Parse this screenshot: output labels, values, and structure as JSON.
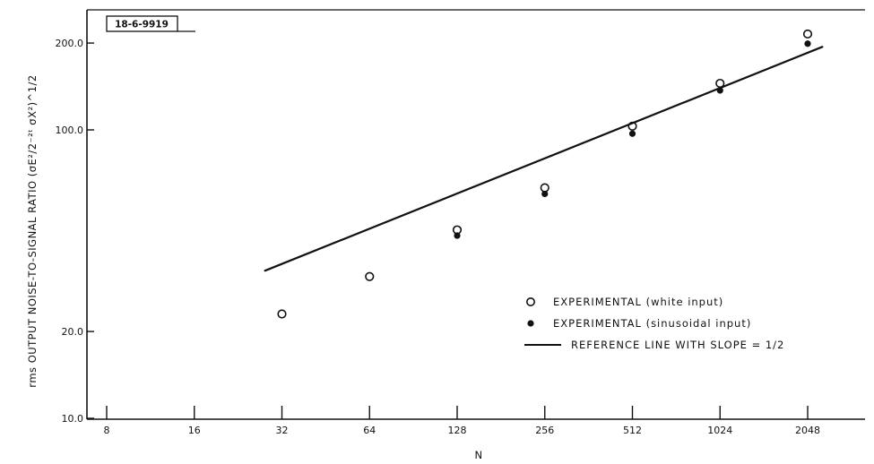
{
  "figure_id": "18-6-9919",
  "chart_data": {
    "type": "scatter",
    "title": "",
    "xlabel": "N",
    "ylabel": "rms OUTPUT NOISE-TO-SIGNAL RATIO (σE²/2⁻²ᵗ σX²)^1/2",
    "x_scale": "log2",
    "y_scale": "log",
    "xlim": [
      8,
      4096
    ],
    "ylim": [
      10,
      300
    ],
    "x_ticks": [
      8,
      16,
      32,
      64,
      128,
      256,
      512,
      1024,
      2048
    ],
    "x_tick_labels": [
      "8",
      "16",
      "32",
      "64",
      "128",
      "256",
      "512",
      "1024",
      "2048"
    ],
    "y_ticks": [
      10,
      20,
      100,
      200
    ],
    "y_tick_labels": [
      "10.0",
      "20.0",
      "100.0",
      "200.0"
    ],
    "legend_position": "right",
    "series": [
      {
        "name": "EXPERIMENTAL (white input)",
        "marker": "open-circle",
        "x": [
          32,
          64,
          128,
          256,
          512,
          1024,
          2048
        ],
        "y": [
          23,
          31,
          45,
          63,
          103,
          145,
          215
        ]
      },
      {
        "name": "EXPERIMENTAL (sinusoidal input)",
        "marker": "filled-circle",
        "x": [
          128,
          256,
          512,
          1024,
          2048
        ],
        "y": [
          43,
          60,
          97,
          137,
          199
        ]
      },
      {
        "name": "REFERENCE LINE WITH SLOPE = 1/2",
        "marker": "line",
        "x": [
          28,
          2300
        ],
        "y": [
          32.5,
          194
        ]
      }
    ]
  }
}
